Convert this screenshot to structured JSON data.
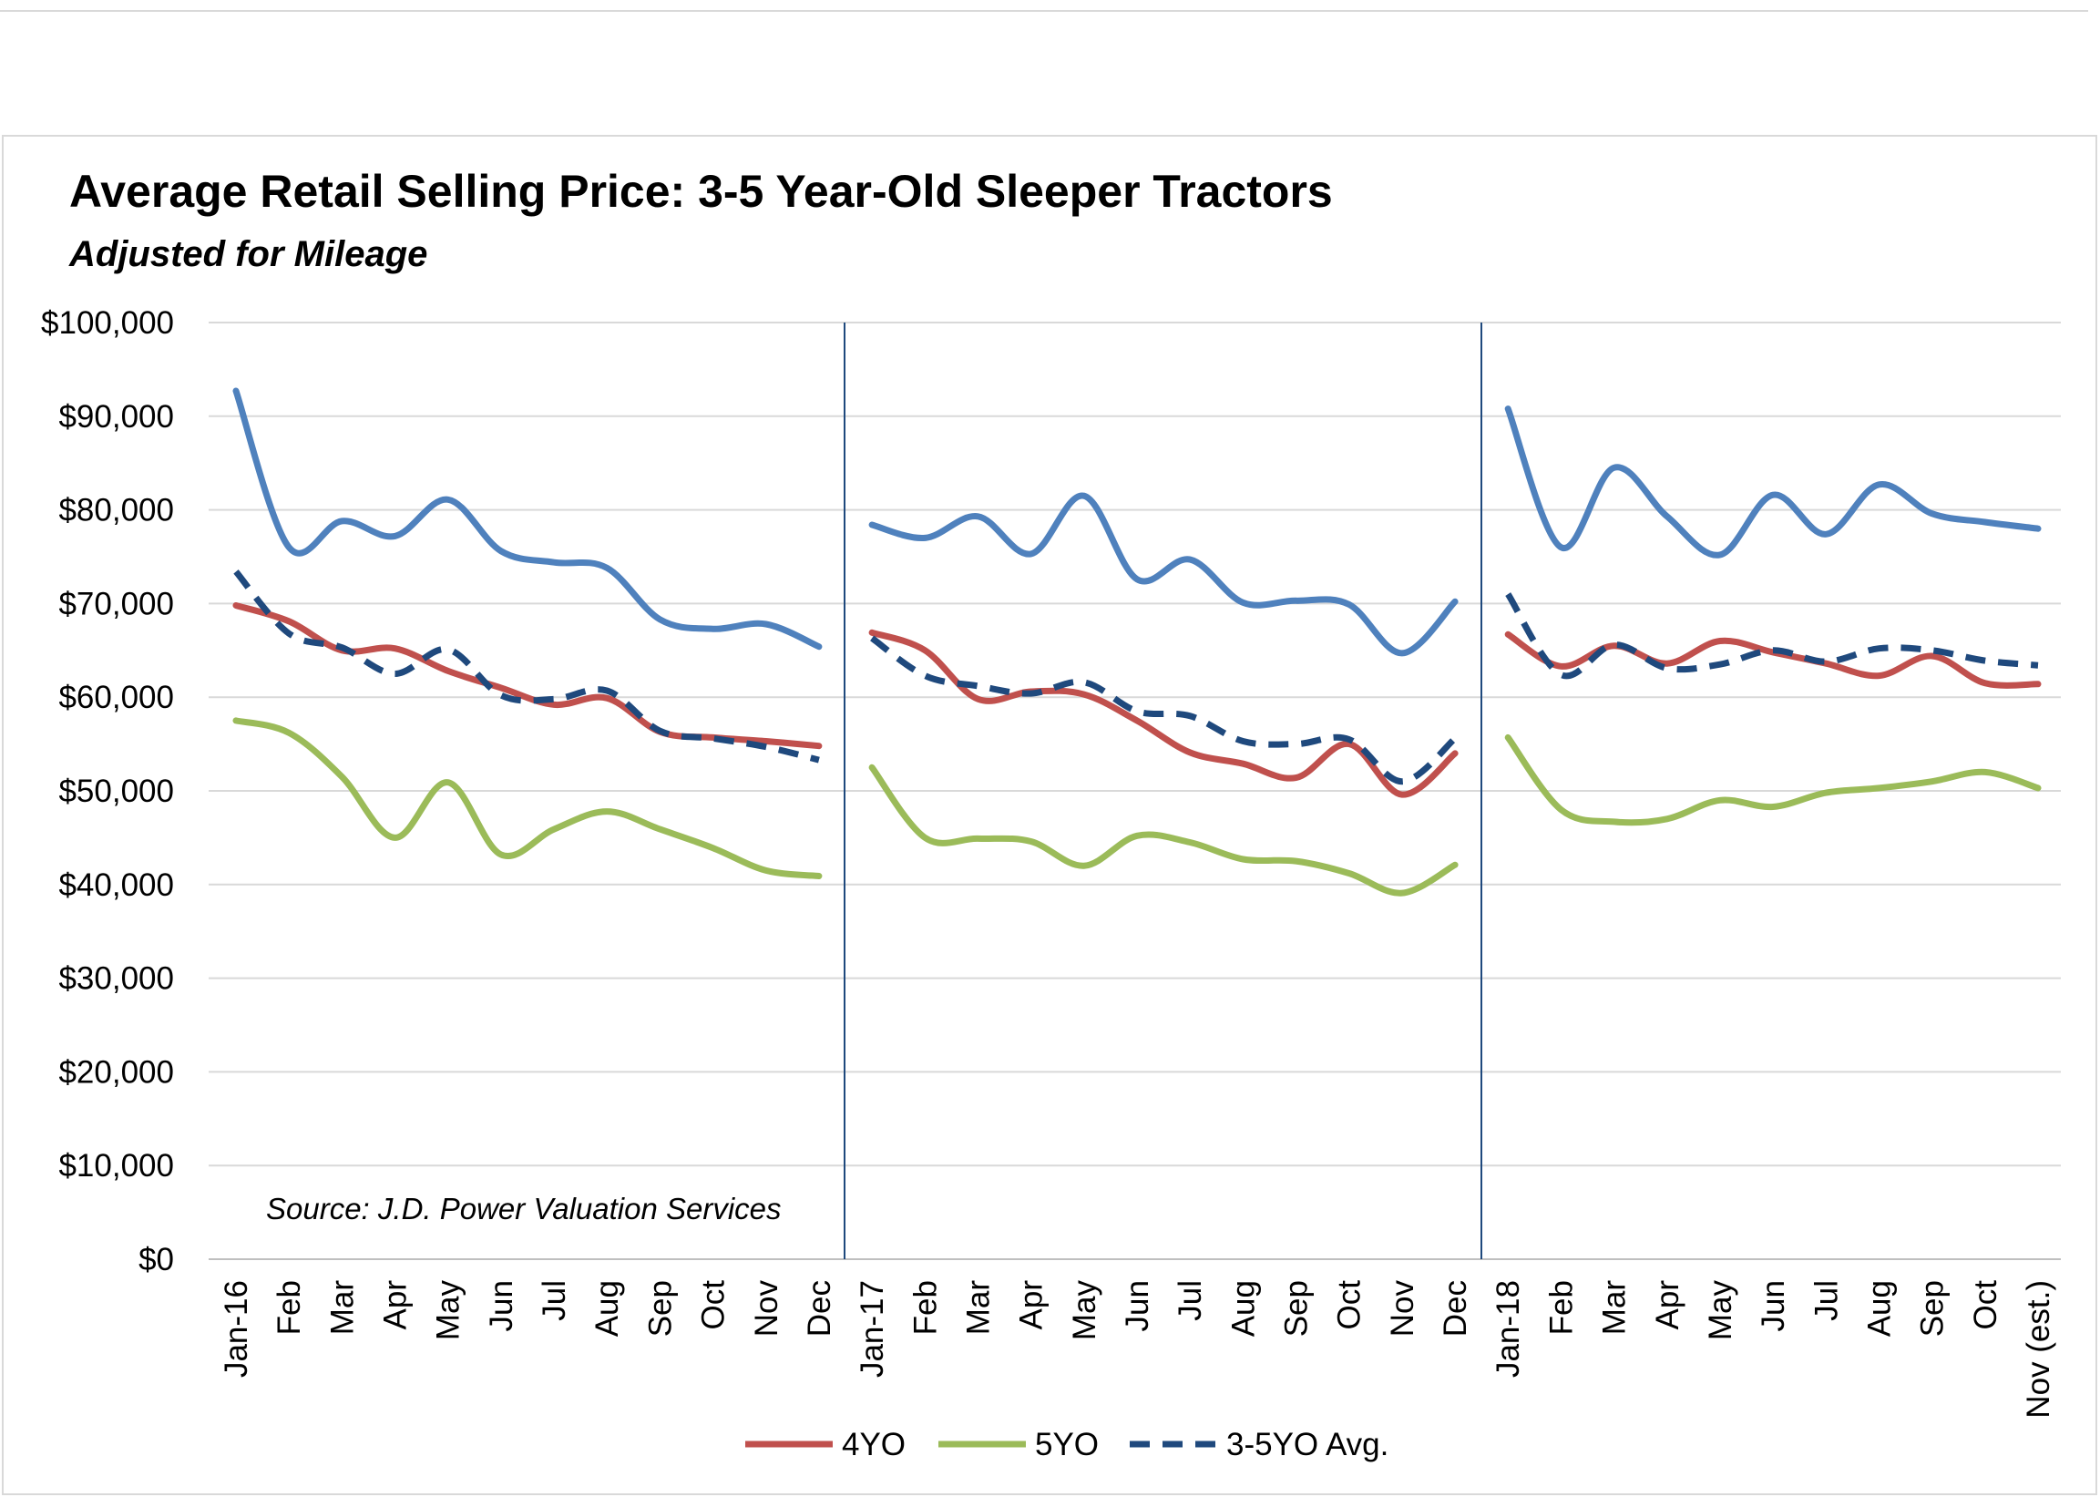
{
  "chart_data": {
    "type": "line",
    "title": "Average Retail Selling Price: 3-5 Year-Old Sleeper Tractors",
    "subtitle": "Adjusted for Mileage",
    "source_note": "Source: J.D. Power Valuation Services",
    "ylim": [
      0,
      100000
    ],
    "y_ticks": [
      0,
      10000,
      20000,
      30000,
      40000,
      50000,
      60000,
      70000,
      80000,
      90000,
      100000
    ],
    "y_tick_labels": [
      "$0",
      "$10,000",
      "$20,000",
      "$30,000",
      "$40,000",
      "$50,000",
      "$60,000",
      "$70,000",
      "$80,000",
      "$90,000",
      "$100,000"
    ],
    "grid": "horizontal",
    "year_separators_after": [
      "Dec",
      "Dec"
    ],
    "legend_position": "bottom",
    "categories": [
      "Jan-16",
      "Feb",
      "Mar",
      "Apr",
      "May",
      "Jun",
      "Jul",
      "Aug",
      "Sep",
      "Oct",
      "Nov",
      "Dec",
      "Jan-17",
      "Feb",
      "Mar",
      "Apr",
      "May",
      "Jun",
      "Jul",
      "Aug",
      "Sep",
      "Oct",
      "Nov",
      "Dec",
      "Jan-18",
      "Feb",
      "Mar",
      "Apr",
      "May",
      "Jun",
      "Jul",
      "Aug",
      "Sep",
      "Oct",
      "Nov (est.)"
    ],
    "segment_breaks_after_index": [
      11,
      23
    ],
    "series": [
      {
        "name": "",
        "color": "#4f81bd",
        "dash": "solid",
        "in_legend": false,
        "values": [
          92700,
          76000,
          78800,
          77200,
          81100,
          75600,
          74400,
          73800,
          68300,
          67300,
          67800,
          65400,
          78400,
          77000,
          79300,
          75300,
          81500,
          72600,
          74700,
          70100,
          70300,
          69900,
          64700,
          70200,
          90800,
          76000,
          84500,
          79300,
          75200,
          81600,
          77400,
          82700,
          79600,
          78700,
          78000
        ]
      },
      {
        "name": "4YO",
        "color": "#c0504d",
        "dash": "solid",
        "in_legend": true,
        "values": [
          69800,
          68100,
          65000,
          65200,
          62800,
          61000,
          59200,
          59900,
          56300,
          55700,
          55300,
          54800,
          66900,
          65000,
          59800,
          60600,
          60300,
          57500,
          54100,
          52900,
          51400,
          55000,
          49600,
          54000,
          66700,
          63300,
          65500,
          63600,
          66000,
          64800,
          63600,
          62300,
          64400,
          61500,
          61400
        ]
      },
      {
        "name": "5YO",
        "color": "#9bbb59",
        "dash": "solid",
        "in_legend": true,
        "values": [
          57500,
          56200,
          51500,
          45000,
          50900,
          43200,
          45900,
          47800,
          45900,
          43900,
          41500,
          40900,
          52500,
          45000,
          44900,
          44600,
          42000,
          45200,
          44500,
          42700,
          42500,
          41200,
          39100,
          42100,
          55700,
          48000,
          46700,
          47000,
          49000,
          48300,
          49800,
          50300,
          51000,
          52000,
          50300
        ]
      },
      {
        "name": "3-5YO Avg.",
        "color": "#1f497d",
        "dash": "dashed",
        "in_legend": true,
        "values": [
          73400,
          66800,
          65300,
          62500,
          65100,
          60200,
          59800,
          60700,
          56400,
          55600,
          54700,
          53300,
          66300,
          62300,
          61200,
          60400,
          61600,
          58500,
          58000,
          55300,
          55000,
          55500,
          51000,
          55600,
          71000,
          62400,
          65600,
          63100,
          63500,
          65000,
          63800,
          65200,
          65000,
          63900,
          63400
        ]
      }
    ]
  }
}
